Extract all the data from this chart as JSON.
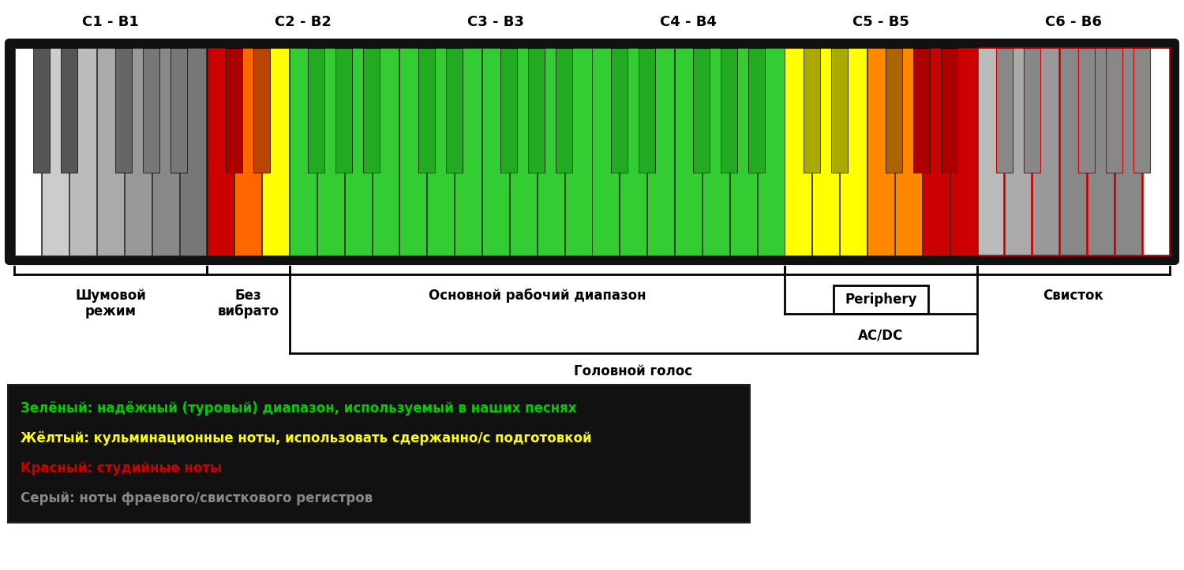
{
  "octave_labels": [
    "C1 - B1",
    "C2 - B2",
    "C3 - B3",
    "C4 - B4",
    "C5 - B5",
    "C6 - B6"
  ],
  "background_color": "#ffffff",
  "keyboard_bg": "#111111",
  "white_key_colors": [
    "#ffffff",
    "#cccccc",
    "#bbbbbb",
    "#aaaaaa",
    "#999999",
    "#888888",
    "#777777",
    "#cc0000",
    "#ff6600",
    "#ffff00",
    "#33cc33",
    "#33cc33",
    "#33cc33",
    "#33cc33",
    "#33cc33",
    "#33cc33",
    "#33cc33",
    "#33cc33",
    "#33cc33",
    "#33cc33",
    "#33cc33",
    "#33cc33",
    "#33cc33",
    "#33cc33",
    "#33cc33",
    "#33cc33",
    "#33cc33",
    "#33cc33",
    "#ffff00",
    "#ffff00",
    "#ffff00",
    "#ff8800",
    "#ff8800",
    "#cc0000",
    "#cc0000",
    "#bbbbbb",
    "#aaaaaa",
    "#999999",
    "#888888",
    "#888888",
    "#888888",
    "#ffffff"
  ],
  "black_key_colors": [
    "#555555",
    "#555555",
    "#666666",
    "#777777",
    "#777777",
    "#aa0000",
    "#bb4400",
    "#22aa22",
    "#22aa22",
    "#22aa22",
    "#22aa22",
    "#22aa22",
    "#22aa22",
    "#22aa22",
    "#22aa22",
    "#22aa22",
    "#22aa22",
    "#22aa22",
    "#22aa22",
    "#22aa22",
    "#aaaa00",
    "#aaaa00",
    "#aa6600",
    "#aa0000",
    "#aa0000",
    "#888888",
    "#888888",
    "#888888",
    "#888888",
    "#888888"
  ],
  "c6_red_border": true,
  "legend_lines": [
    {
      "text": "Зелёный: надёжный (туровый) диапазон, используемый в наших песнях",
      "color": "#00cc00"
    },
    {
      "text": "Жёлтый: кульминационные ноты, использовать сдержанно/с подготовкой",
      "color": "#ffff00"
    },
    {
      "text": "Красный: студийные ноты",
      "color": "#cc0000"
    },
    {
      "text": "Серый: ноты фраевого/свисткового регистров",
      "color": "#888888"
    }
  ]
}
